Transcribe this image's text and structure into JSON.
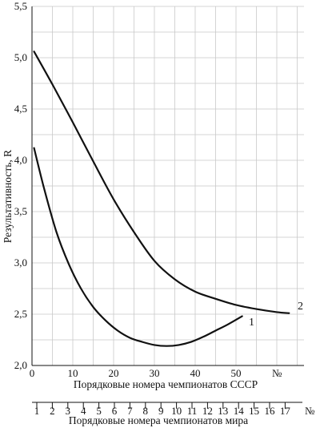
{
  "chart_data": {
    "type": "line",
    "ylabel": "Результативность, R",
    "xlabel": "Порядковые номера чемпионатов СССР",
    "x2label": "Порядковые номера чемпионатов мира",
    "xlim": [
      0,
      60
    ],
    "ylim": [
      2.0,
      5.5
    ],
    "x_ticks": [
      "0",
      "10",
      "20",
      "30",
      "40",
      "50"
    ],
    "x_end_label": "№",
    "y_ticks": [
      "2,0",
      "2,5",
      "3,0",
      "3,5",
      "4,0",
      "4,5",
      "5,0",
      "5,5"
    ],
    "y_tick_values": [
      2.0,
      2.5,
      3.0,
      3.5,
      4.0,
      4.5,
      5.0,
      5.5
    ],
    "x2_ticks": [
      "1",
      "2",
      "3",
      "4",
      "5",
      "6",
      "7",
      "8",
      "9",
      "10",
      "11",
      "12",
      "13",
      "14",
      "15",
      "16",
      "17"
    ],
    "x2_end_label": "№",
    "grid": true,
    "series": [
      {
        "name": "1",
        "x": [
          0.5,
          3,
          6,
          9,
          12,
          15,
          18,
          21,
          24,
          27,
          30,
          33,
          36,
          39,
          42,
          45,
          48,
          51.5
        ],
        "y": [
          4.12,
          3.72,
          3.3,
          2.99,
          2.75,
          2.57,
          2.44,
          2.34,
          2.27,
          2.23,
          2.2,
          2.19,
          2.2,
          2.23,
          2.28,
          2.34,
          2.4,
          2.48
        ]
      },
      {
        "name": "2",
        "x": [
          0.5,
          5,
          10,
          15,
          20,
          25,
          30,
          35,
          40,
          45,
          50,
          55,
          60,
          63
        ],
        "y": [
          5.06,
          4.74,
          4.37,
          3.99,
          3.62,
          3.3,
          3.02,
          2.84,
          2.72,
          2.65,
          2.59,
          2.55,
          2.52,
          2.51
        ]
      }
    ]
  }
}
